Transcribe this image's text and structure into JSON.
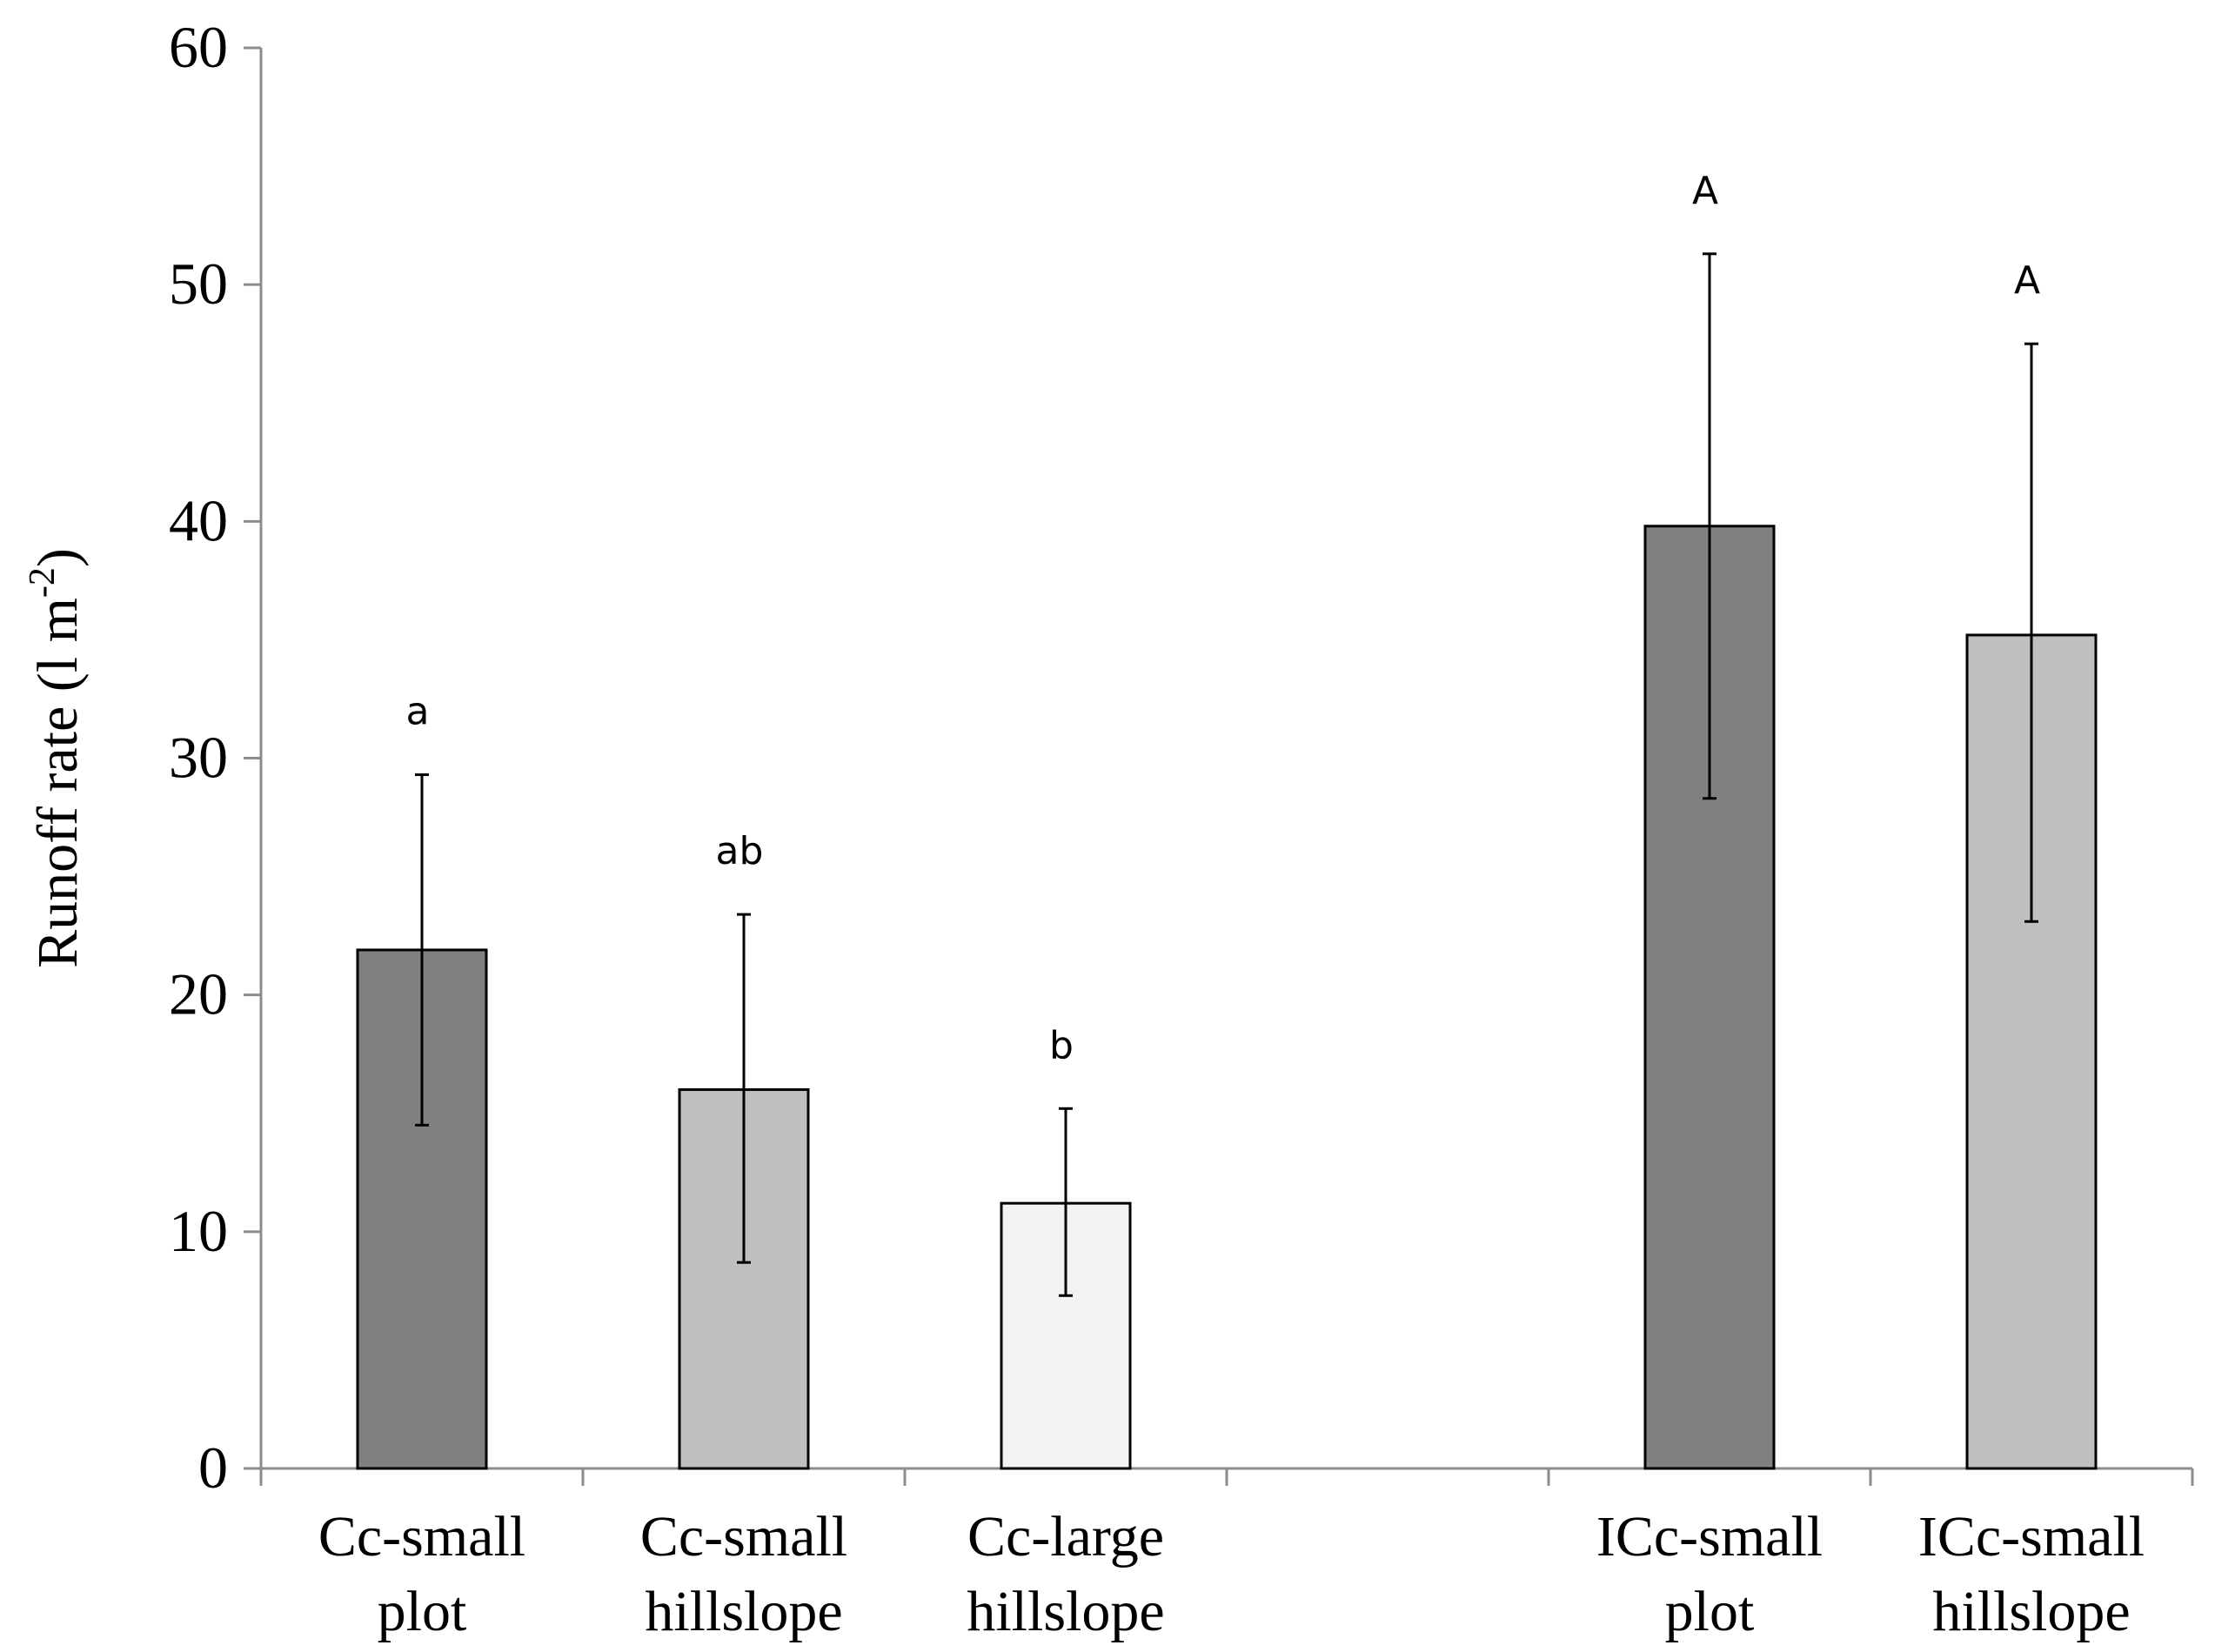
{
  "chart_data": {
    "type": "bar",
    "title": "",
    "xlabel": "",
    "ylabel": {
      "text": "Runoff rate (l m",
      "sup": "-2",
      "close": ")"
    },
    "ylim": [
      0,
      60
    ],
    "yticks": [
      0,
      10,
      20,
      30,
      40,
      50,
      60
    ],
    "grid": false,
    "slots": 6,
    "categories": [
      {
        "label": [
          "Cc-small",
          "plot"
        ],
        "slot": 0,
        "value": 21.9,
        "err_low": 14.5,
        "err_high": 29.3,
        "sig": "a",
        "color": "#808080"
      },
      {
        "label": [
          "Cc-small",
          "hillslope"
        ],
        "slot": 1,
        "value": 16.0,
        "err_low": 8.7,
        "err_high": 23.4,
        "sig": "ab",
        "color": "#bfbfbf"
      },
      {
        "label": [
          "Cc-large",
          "hillslope"
        ],
        "slot": 2,
        "value": 11.2,
        "err_low": 7.3,
        "err_high": 15.2,
        "sig": "b",
        "color": "#f2f2f2"
      },
      {
        "label": [
          "ICc-small",
          "plot"
        ],
        "slot": 4,
        "value": 39.8,
        "err_low": 28.3,
        "err_high": 51.3,
        "sig": "A",
        "color": "#808080"
      },
      {
        "label": [
          "ICc-small",
          "hillslope"
        ],
        "slot": 5,
        "value": 35.2,
        "err_low": 23.1,
        "err_high": 47.5,
        "sig": "A",
        "color": "#bfbfbf"
      }
    ]
  }
}
